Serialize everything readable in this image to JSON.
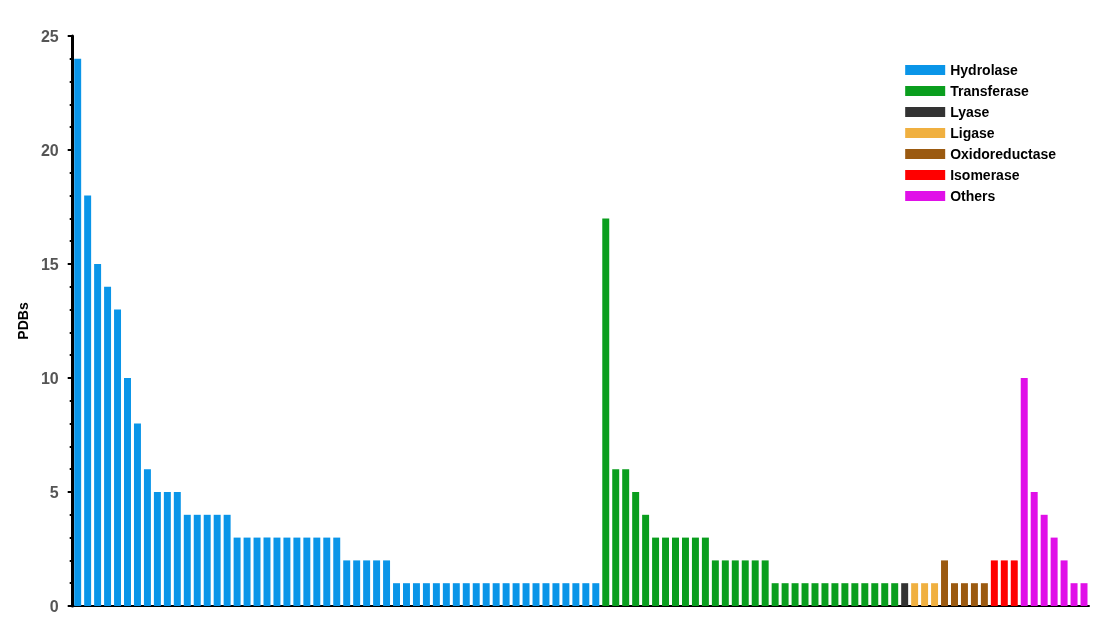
{
  "chart_data": {
    "type": "bar",
    "ylabel": "PDBs",
    "categories": [
      null,
      null,
      null,
      null,
      null,
      null,
      null,
      null,
      null,
      null,
      null,
      null,
      null,
      null,
      null,
      null,
      null,
      null,
      null,
      null,
      null,
      null,
      null,
      null,
      null,
      null,
      null,
      null,
      null,
      null,
      null,
      null,
      null,
      null,
      null,
      null,
      null,
      null,
      null,
      null,
      null,
      null,
      null,
      null,
      null,
      null,
      null,
      null,
      null,
      null,
      null,
      null,
      null,
      null,
      null,
      null,
      null,
      null,
      null,
      null,
      null,
      null,
      null,
      null,
      null,
      null,
      null,
      null,
      null,
      null,
      null,
      null,
      null,
      null,
      null,
      null,
      null,
      null,
      null,
      null,
      null,
      null,
      null,
      null,
      null,
      null,
      null,
      null,
      null,
      null,
      null,
      null,
      null,
      null,
      null,
      null,
      null,
      null,
      null,
      null,
      null,
      null
    ],
    "series": [
      {
        "name": "Hydrolase",
        "color": "#0a95e8",
        "values": [
          24,
          18,
          15,
          14,
          13,
          10,
          8,
          6,
          5,
          5,
          5,
          4,
          4,
          4,
          4,
          4,
          3,
          3,
          3,
          3,
          3,
          3,
          3,
          3,
          3,
          3,
          3,
          2,
          2,
          2,
          2,
          2,
          1,
          1,
          1,
          1,
          1,
          1,
          1,
          1,
          1,
          1,
          1,
          1,
          1,
          1,
          1,
          1,
          1,
          1,
          1,
          1,
          1,
          null,
          null,
          null,
          null,
          null,
          null,
          null,
          null,
          null,
          null,
          null,
          null,
          null,
          null,
          null,
          null,
          null,
          null,
          null,
          null,
          null,
          null,
          null,
          null,
          null,
          null,
          null,
          null,
          null,
          null,
          null,
          null,
          null,
          null,
          null,
          null,
          null,
          null,
          null,
          null,
          null,
          null,
          null,
          null,
          null,
          null,
          null,
          null,
          null
        ]
      },
      {
        "name": "Transferase",
        "color": "#0a9e1e",
        "values": [
          null,
          null,
          null,
          null,
          null,
          null,
          null,
          null,
          null,
          null,
          null,
          null,
          null,
          null,
          null,
          null,
          null,
          null,
          null,
          null,
          null,
          null,
          null,
          null,
          null,
          null,
          null,
          null,
          null,
          null,
          null,
          null,
          null,
          null,
          null,
          null,
          null,
          null,
          null,
          null,
          null,
          null,
          null,
          null,
          null,
          null,
          null,
          null,
          null,
          null,
          null,
          null,
          null,
          17,
          6,
          6,
          5,
          4,
          3,
          3,
          3,
          3,
          3,
          3,
          2,
          2,
          2,
          2,
          2,
          2,
          1,
          1,
          1,
          1,
          1,
          1,
          1,
          1,
          1,
          1,
          1,
          1,
          1,
          null,
          null,
          null,
          null,
          null,
          null,
          null,
          null,
          null,
          null,
          null,
          null,
          null,
          null,
          null,
          null,
          null,
          null,
          null
        ]
      },
      {
        "name": "Lyase",
        "color": "#333333",
        "values": [
          null,
          null,
          null,
          null,
          null,
          null,
          null,
          null,
          null,
          null,
          null,
          null,
          null,
          null,
          null,
          null,
          null,
          null,
          null,
          null,
          null,
          null,
          null,
          null,
          null,
          null,
          null,
          null,
          null,
          null,
          null,
          null,
          null,
          null,
          null,
          null,
          null,
          null,
          null,
          null,
          null,
          null,
          null,
          null,
          null,
          null,
          null,
          null,
          null,
          null,
          null,
          null,
          null,
          null,
          null,
          null,
          null,
          null,
          null,
          null,
          null,
          null,
          null,
          null,
          null,
          null,
          null,
          null,
          null,
          null,
          null,
          null,
          null,
          null,
          null,
          null,
          null,
          null,
          null,
          null,
          null,
          null,
          null,
          1,
          null,
          null,
          null,
          null,
          null,
          null,
          null,
          null,
          null,
          null,
          null,
          null,
          null,
          null,
          null,
          null,
          null,
          null
        ]
      },
      {
        "name": "Ligase",
        "color": "#f0b040",
        "values": [
          null,
          null,
          null,
          null,
          null,
          null,
          null,
          null,
          null,
          null,
          null,
          null,
          null,
          null,
          null,
          null,
          null,
          null,
          null,
          null,
          null,
          null,
          null,
          null,
          null,
          null,
          null,
          null,
          null,
          null,
          null,
          null,
          null,
          null,
          null,
          null,
          null,
          null,
          null,
          null,
          null,
          null,
          null,
          null,
          null,
          null,
          null,
          null,
          null,
          null,
          null,
          null,
          null,
          null,
          null,
          null,
          null,
          null,
          null,
          null,
          null,
          null,
          null,
          null,
          null,
          null,
          null,
          null,
          null,
          null,
          null,
          null,
          null,
          null,
          null,
          null,
          null,
          null,
          null,
          null,
          null,
          null,
          null,
          null,
          1,
          1,
          1,
          null,
          null,
          null,
          null,
          null,
          null,
          null,
          null,
          null,
          null,
          null,
          null,
          null,
          null,
          null
        ]
      },
      {
        "name": "Oxidoreductase",
        "color": "#9b5a10",
        "values": [
          null,
          null,
          null,
          null,
          null,
          null,
          null,
          null,
          null,
          null,
          null,
          null,
          null,
          null,
          null,
          null,
          null,
          null,
          null,
          null,
          null,
          null,
          null,
          null,
          null,
          null,
          null,
          null,
          null,
          null,
          null,
          null,
          null,
          null,
          null,
          null,
          null,
          null,
          null,
          null,
          null,
          null,
          null,
          null,
          null,
          null,
          null,
          null,
          null,
          null,
          null,
          null,
          null,
          null,
          null,
          null,
          null,
          null,
          null,
          null,
          null,
          null,
          null,
          null,
          null,
          null,
          null,
          null,
          null,
          null,
          null,
          null,
          null,
          null,
          null,
          null,
          null,
          null,
          null,
          null,
          null,
          null,
          null,
          null,
          null,
          null,
          null,
          2,
          1,
          1,
          1,
          1,
          null,
          null,
          null,
          null,
          null,
          null,
          null,
          null,
          null,
          null
        ]
      },
      {
        "name": "Isomerase",
        "color": "#ff0000",
        "values": [
          null,
          null,
          null,
          null,
          null,
          null,
          null,
          null,
          null,
          null,
          null,
          null,
          null,
          null,
          null,
          null,
          null,
          null,
          null,
          null,
          null,
          null,
          null,
          null,
          null,
          null,
          null,
          null,
          null,
          null,
          null,
          null,
          null,
          null,
          null,
          null,
          null,
          null,
          null,
          null,
          null,
          null,
          null,
          null,
          null,
          null,
          null,
          null,
          null,
          null,
          null,
          null,
          null,
          null,
          null,
          null,
          null,
          null,
          null,
          null,
          null,
          null,
          null,
          null,
          null,
          null,
          null,
          null,
          null,
          null,
          null,
          null,
          null,
          null,
          null,
          null,
          null,
          null,
          null,
          null,
          null,
          null,
          null,
          null,
          null,
          null,
          null,
          null,
          null,
          null,
          null,
          null,
          2,
          2,
          2,
          null,
          null,
          null,
          null,
          null,
          null,
          null
        ]
      },
      {
        "name": "Others",
        "color": "#e010e8",
        "values": [
          null,
          null,
          null,
          null,
          null,
          null,
          null,
          null,
          null,
          null,
          null,
          null,
          null,
          null,
          null,
          null,
          null,
          null,
          null,
          null,
          null,
          null,
          null,
          null,
          null,
          null,
          null,
          null,
          null,
          null,
          null,
          null,
          null,
          null,
          null,
          null,
          null,
          null,
          null,
          null,
          null,
          null,
          null,
          null,
          null,
          null,
          null,
          null,
          null,
          null,
          null,
          null,
          null,
          null,
          null,
          null,
          null,
          null,
          null,
          null,
          null,
          null,
          null,
          null,
          null,
          null,
          null,
          null,
          null,
          null,
          null,
          null,
          null,
          null,
          null,
          null,
          null,
          null,
          null,
          null,
          null,
          null,
          null,
          null,
          null,
          null,
          null,
          null,
          null,
          null,
          null,
          null,
          null,
          null,
          null,
          10,
          5,
          4,
          3,
          2,
          1,
          1
        ]
      }
    ],
    "ylim": [
      0,
      25
    ],
    "yticks": [
      0,
      5,
      10,
      15,
      20,
      25
    ],
    "grid": false,
    "legend": "top right"
  }
}
